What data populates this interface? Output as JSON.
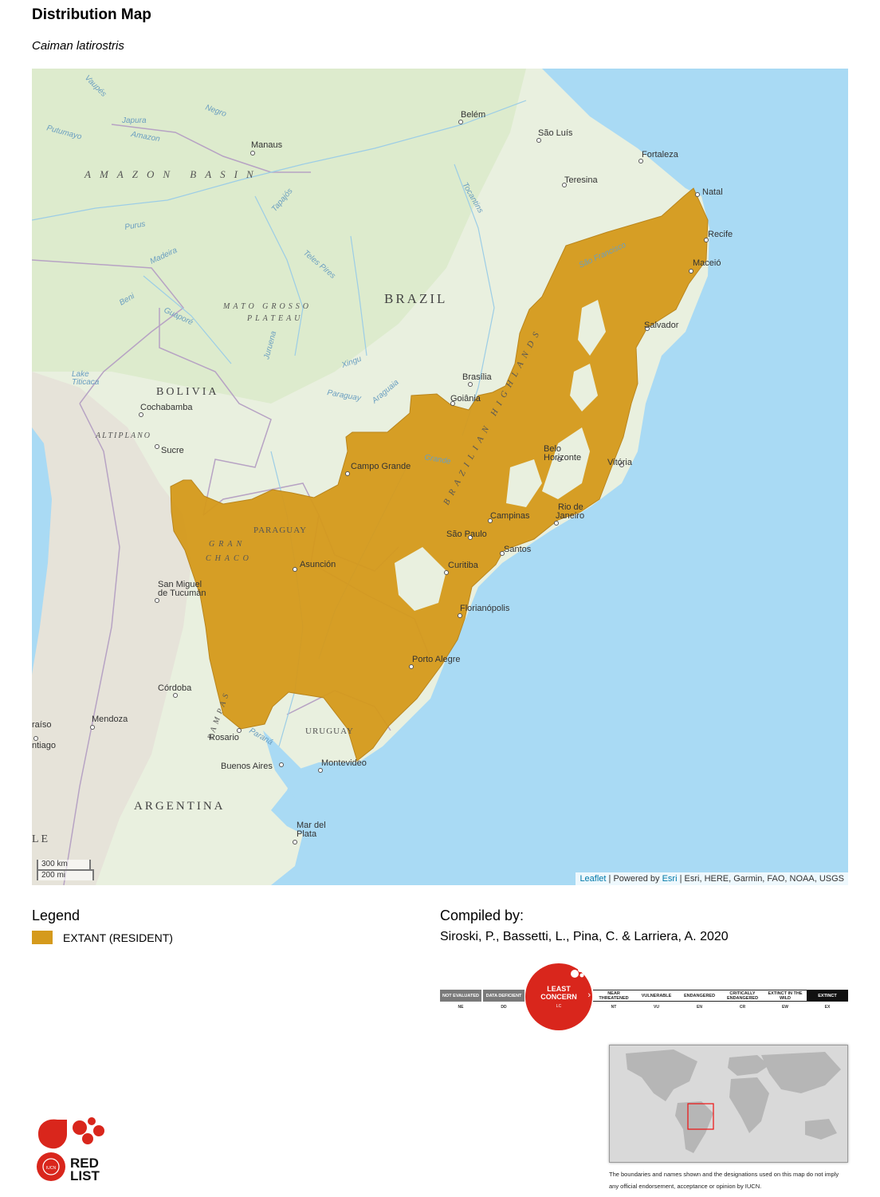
{
  "header": {
    "title": "Distribution Map",
    "species": "Caiman latirostris"
  },
  "map": {
    "water_color": "#a9daf4",
    "land_color": "#e9f0df",
    "range_color": "#d59a1c",
    "labels": {
      "belem": "Belém",
      "sao_luis": "São Luís",
      "fortaleza": "Fortaleza",
      "teresina": "Teresina",
      "natal": "Natal",
      "recife": "Recife",
      "maceio": "Maceió",
      "salvador": "Salvador",
      "manaus": "Manaus",
      "amazon_basin": "AMAZON BASIN",
      "brazil": "BRAZIL",
      "mato_grosso_1": "MATO GROSSO",
      "mato_grosso_2": "PLATEAU",
      "bolivia": "BOLIVIA",
      "cochabamba": "Cochabamba",
      "altiplano": "ALTIPLANO",
      "sucre": "Sucre",
      "lake_titicaca_1": "Lake",
      "lake_titicaca_2": "Titicaca",
      "brasilia": "Brasília",
      "goiania": "Goiânia",
      "belo_horizonte_1": "Belo",
      "belo_horizonte_2": "Horizonte",
      "vitoria": "Vitória",
      "campo_grande": "Campo Grande",
      "campinas": "Campinas",
      "rio_1": "Rio de",
      "rio_2": "Janeiro",
      "sao_paulo": "São Paulo",
      "santos": "Santos",
      "curitiba": "Curitiba",
      "florianopolis": "Florianópolis",
      "porto_alegre": "Porto Alegre",
      "paraguay": "PARAGUAY",
      "gran_chaco_1": "GRAN",
      "gran_chaco_2": "CHACO",
      "asuncion": "Asunción",
      "san_miguel_1": "San Miguel",
      "san_miguel_2": "de Tucumán",
      "cordoba": "Córdoba",
      "mendoza": "Mendoza",
      "rosario": "Rosario",
      "uruguay": "URUGUAY",
      "buenos_aires": "Buenos Aires",
      "montevideo": "Montevideo",
      "argentina": "ARGENTINA",
      "mar_del_plata_1": "Mar del",
      "mar_del_plata_2": "Plata",
      "valparaiso": "raíso",
      "santiago": "ntiago",
      "chile_fragment": "LE",
      "river_purus": "Purus",
      "river_madeira": "Madeira",
      "river_tapajos": "Tapajós",
      "river_xingu": "Xingu",
      "river_tocantins": "Tocantins",
      "river_negro": "Negro",
      "river_japura": "Japura",
      "river_amazon": "Amazon",
      "river_putumayo": "Putumayo",
      "river_vaupes": "Vaupés",
      "river_paraguay": "Paraguay",
      "river_araguaia": "Araguaia",
      "river_guapore": "Guaporé",
      "river_beni": "Beni",
      "river_juruena": "Juruena",
      "river_teles_pires": "Teles Pires",
      "river_parana": "Paraná",
      "river_grande": "Grande",
      "river_sao_francisco": "São Francisco",
      "pampas": "PAMPAS",
      "brazilian_highlands": "BRAZILIAN HIGHLANDS"
    },
    "scale": {
      "km": "300 km",
      "mi": "200 mi"
    },
    "attribution": {
      "leaflet": "Leaflet",
      "sep1": " | Powered by ",
      "esri": "Esri",
      "rest": " | Esri, HERE, Garmin, FAO, NOAA, USGS"
    }
  },
  "legend": {
    "heading": "Legend",
    "items": [
      {
        "label": "EXTANT (RESIDENT)",
        "color": "#d59a1c"
      }
    ]
  },
  "compiled": {
    "heading": "Compiled by:",
    "authors": "Siroski, P., Bassetti, L., Pina, C. & Larriera, A. 2020"
  },
  "category_scale": {
    "current": "LC",
    "current_label": "LEAST CONCERN",
    "items": [
      {
        "label": "NOT EVALUATED",
        "code": "NE"
      },
      {
        "label": "DATA DEFICIENT",
        "code": "DD"
      },
      {
        "label": "NEAR THREATENED",
        "code": "NT"
      },
      {
        "label": "VULNERABLE",
        "code": "VU"
      },
      {
        "label": "ENDANGERED",
        "code": "EN"
      },
      {
        "label": "CRITICALLY ENDANGERED",
        "code": "CR"
      },
      {
        "label": "EXTINCT IN THE WILD",
        "code": "EW"
      },
      {
        "label": "EXTINCT",
        "code": "EX"
      }
    ],
    "badge_text": "RED LIST"
  },
  "disclaimer": "The boundaries and names shown and the designations used on this map do not imply any official endorsement, acceptance or opinion by IUCN.",
  "logo": {
    "line1": "RED",
    "line2": "LIST",
    "iucn": "IUCN",
    "color": "#d9261c"
  }
}
